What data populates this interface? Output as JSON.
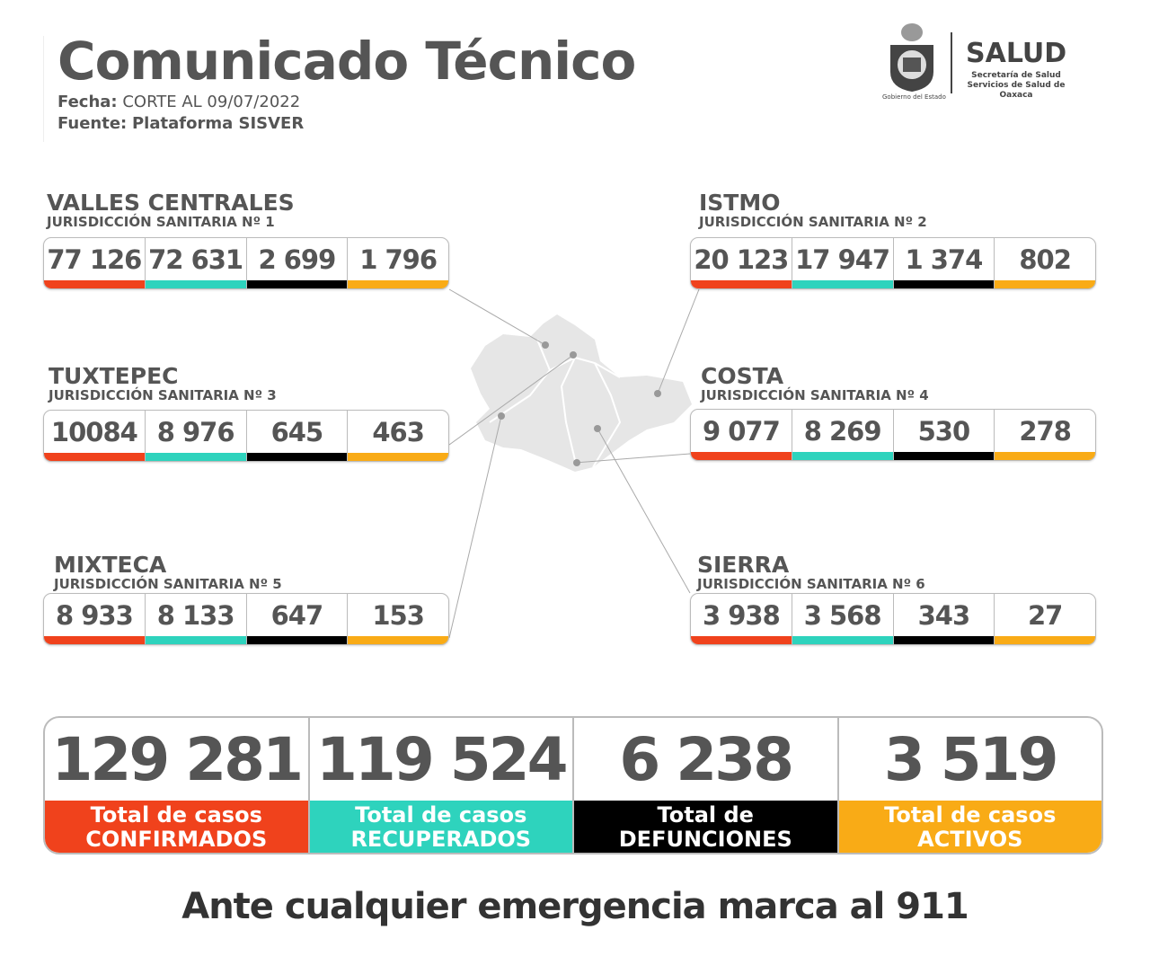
{
  "header": {
    "title": "Comunicado Técnico",
    "fecha_label": "Fecha:",
    "fecha_value": "CORTE AL 09/07/2022",
    "fuente_label": "Fuente:",
    "fuente_value": "Plataforma SISVER"
  },
  "logo": {
    "salud": "SALUD",
    "line1": "Secretaría de Salud",
    "line2": "Servicios de Salud de Oaxaca",
    "gobierno": "Gobierno del Estado"
  },
  "colors": {
    "confirmados": "#f0421c",
    "recuperados": "#2ed3bd",
    "defunciones": "#000000",
    "activos": "#f9ab16"
  },
  "regions": [
    {
      "name": "VALLES CENTRALES",
      "sub": "JURISDICCIÓN SANITARIA Nº 1",
      "values": [
        "77 126",
        "72 631",
        "2 699",
        "1 796"
      ]
    },
    {
      "name": "ISTMO",
      "sub": "JURISDICCIÓN SANITARIA Nº 2",
      "values": [
        "20 123",
        "17 947",
        "1 374",
        "802"
      ]
    },
    {
      "name": "TUXTEPEC",
      "sub": "JURISDICCIÓN SANITARIA Nº 3",
      "values": [
        "10084",
        "8 976",
        "645",
        "463"
      ]
    },
    {
      "name": "COSTA",
      "sub": "JURISDICCIÓN SANITARIA Nº 4",
      "values": [
        "9 077",
        "8 269",
        "530",
        "278"
      ]
    },
    {
      "name": "MIXTECA",
      "sub": "JURISDICCIÓN SANITARIA Nº 5",
      "values": [
        "8 933",
        "8 133",
        "647",
        "153"
      ]
    },
    {
      "name": "SIERRA",
      "sub": "JURISDICCIÓN SANITARIA Nº 6",
      "values": [
        "3 938",
        "3 568",
        "343",
        "27"
      ]
    }
  ],
  "totals": [
    {
      "value": "129 281",
      "line1": "Total de casos",
      "line2": "CONFIRMADOS"
    },
    {
      "value": "119 524",
      "line1": "Total de casos",
      "line2": "RECUPERADOS"
    },
    {
      "value": "6 238",
      "line1": "Total de",
      "line2": "DEFUNCIONES"
    },
    {
      "value": "3 519",
      "line1": "Total de casos",
      "line2": "ACTIVOS"
    }
  ],
  "footer": "Ante cualquier emergencia marca al 911"
}
